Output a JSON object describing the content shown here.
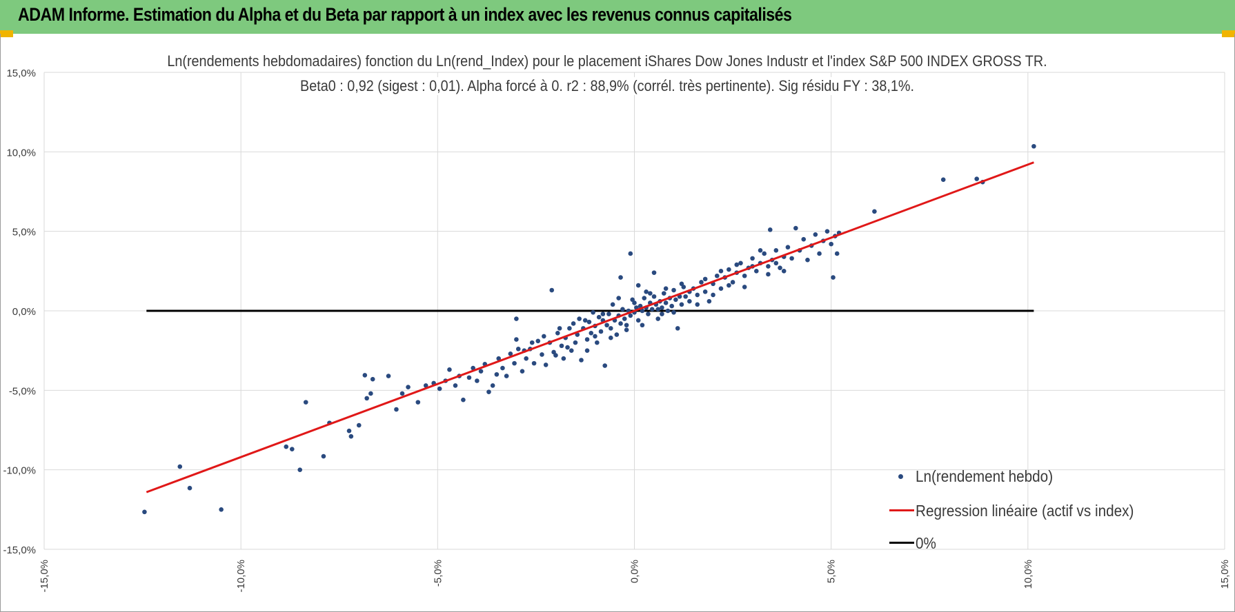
{
  "header": {
    "title": "ADAM Informe. Estimation du Alpha et du Beta par rapport à un index avec les revenus connus capitalisés"
  },
  "colors": {
    "header_bg": "#7ec97e",
    "points": "#2a4a7f",
    "regression": "#e01818",
    "zero_line": "#000000",
    "grid": "#d9d9d9"
  },
  "chart_data": {
    "type": "scatter",
    "title_line1": "Ln(rendements hebdomadaires) fonction du Ln(rend_Index) pour le placement iShares Dow Jones Industr et l'index S&P 500 INDEX GROSS TR.",
    "title_line2": "Beta0 : 0,92  (sigest : 0,01). Alpha forcé à 0. r2 : 88,9% (corrél. très pertinente). Sig résidu FY : 38,1%.",
    "xlim": [
      -0.15,
      0.15
    ],
    "ylim": [
      -0.15,
      0.15
    ],
    "x_ticks": [
      -0.15,
      -0.1,
      -0.05,
      0.0,
      0.05,
      0.1,
      0.15
    ],
    "x_tick_labels": [
      "-15,0%",
      "-10,0%",
      "-5,0%",
      "0,0%",
      "5,0%",
      "10,0%",
      "15,0%"
    ],
    "y_ticks": [
      0.15,
      0.1,
      0.05,
      0.0,
      -0.05,
      -0.1,
      -0.15
    ],
    "y_tick_labels": [
      "15,0%",
      "10,0%",
      "5,0%",
      "0,0%",
      "-5,0%",
      "-10,0%",
      "-15,0%"
    ],
    "grid": true,
    "legend_position": "bottom-right",
    "beta": 0.92,
    "series": [
      {
        "name": "Ln(rendement hebdo)",
        "kind": "scatter",
        "points": [
          [
            -0.1245,
            -0.1265
          ],
          [
            -0.1155,
            -0.098
          ],
          [
            -0.113,
            -0.1115
          ],
          [
            -0.105,
            -0.125
          ],
          [
            -0.0885,
            -0.0855
          ],
          [
            -0.087,
            -0.087
          ],
          [
            -0.085,
            -0.1
          ],
          [
            -0.0835,
            -0.0575
          ],
          [
            -0.079,
            -0.0915
          ],
          [
            -0.0775,
            -0.0705
          ],
          [
            -0.0725,
            -0.0755
          ],
          [
            -0.072,
            -0.079
          ],
          [
            -0.07,
            -0.072
          ],
          [
            -0.0685,
            -0.0405
          ],
          [
            -0.068,
            -0.055
          ],
          [
            -0.067,
            -0.052
          ],
          [
            -0.0665,
            -0.043
          ],
          [
            -0.0625,
            -0.041
          ],
          [
            -0.0605,
            -0.062
          ],
          [
            -0.059,
            -0.052
          ],
          [
            -0.0575,
            -0.048
          ],
          [
            -0.055,
            -0.0575
          ],
          [
            -0.053,
            -0.047
          ],
          [
            -0.051,
            -0.0455
          ],
          [
            -0.0495,
            -0.049
          ],
          [
            -0.048,
            -0.044
          ],
          [
            -0.047,
            -0.037
          ],
          [
            -0.0455,
            -0.047
          ],
          [
            -0.0445,
            -0.041
          ],
          [
            -0.0435,
            -0.056
          ],
          [
            -0.042,
            -0.042
          ],
          [
            -0.041,
            -0.036
          ],
          [
            -0.04,
            -0.044
          ],
          [
            -0.039,
            -0.038
          ],
          [
            -0.038,
            -0.0335
          ],
          [
            -0.037,
            -0.051
          ],
          [
            -0.036,
            -0.047
          ],
          [
            -0.035,
            -0.04
          ],
          [
            -0.0345,
            -0.03
          ],
          [
            -0.0335,
            -0.036
          ],
          [
            -0.0325,
            -0.041
          ],
          [
            -0.0315,
            -0.027
          ],
          [
            -0.0305,
            -0.033
          ],
          [
            -0.03,
            -0.005
          ],
          [
            -0.0295,
            -0.024
          ],
          [
            -0.0285,
            -0.038
          ],
          [
            -0.0275,
            -0.03
          ],
          [
            -0.0265,
            -0.024
          ],
          [
            -0.0255,
            -0.033
          ],
          [
            -0.0245,
            -0.019
          ],
          [
            -0.0235,
            -0.0275
          ],
          [
            -0.0225,
            -0.034
          ],
          [
            -0.0215,
            -0.02
          ],
          [
            -0.021,
            0.013
          ],
          [
            -0.0205,
            -0.026
          ],
          [
            -0.0195,
            -0.014
          ],
          [
            -0.0185,
            -0.022
          ],
          [
            -0.018,
            -0.03
          ],
          [
            -0.0175,
            -0.017
          ],
          [
            -0.0165,
            -0.011
          ],
          [
            -0.016,
            -0.025
          ],
          [
            -0.0155,
            -0.008
          ],
          [
            -0.015,
            -0.02
          ],
          [
            -0.0145,
            -0.015
          ],
          [
            -0.0135,
            -0.031
          ],
          [
            -0.013,
            -0.011
          ],
          [
            -0.0125,
            -0.006
          ],
          [
            -0.012,
            -0.018
          ],
          [
            -0.0115,
            -0.007
          ],
          [
            -0.011,
            -0.014
          ],
          [
            -0.0105,
            -0.001
          ],
          [
            -0.01,
            -0.0095
          ],
          [
            -0.0095,
            -0.02
          ],
          [
            -0.009,
            -0.004
          ],
          [
            -0.0085,
            -0.013
          ],
          [
            -0.008,
            -0.006
          ],
          [
            -0.0075,
            -0.0345
          ],
          [
            -0.007,
            -0.009
          ],
          [
            -0.0065,
            -0.002
          ],
          [
            -0.006,
            -0.011
          ],
          [
            -0.0055,
            0.004
          ],
          [
            -0.005,
            -0.006
          ],
          [
            -0.0045,
            -0.015
          ],
          [
            -0.004,
            -0.003
          ],
          [
            -0.0035,
            -0.008
          ],
          [
            -0.003,
            0.001
          ],
          [
            -0.0025,
            -0.005
          ],
          [
            -0.002,
            -0.012
          ],
          [
            -0.0015,
            0.0
          ],
          [
            -0.001,
            -0.003
          ],
          [
            -0.0005,
            0.007
          ],
          [
            0.0,
            -0.001
          ],
          [
            0.0005,
            0.002
          ],
          [
            0.001,
            -0.006
          ],
          [
            0.0015,
            0.003
          ],
          [
            0.002,
            0.0
          ],
          [
            0.0025,
            0.008
          ],
          [
            0.003,
            0.002
          ],
          [
            0.0035,
            -0.002
          ],
          [
            0.004,
            0.005
          ],
          [
            0.0045,
            0.001
          ],
          [
            0.005,
            0.009
          ],
          [
            0.0055,
            0.004
          ],
          [
            0.006,
            -0.005
          ],
          [
            0.0065,
            0.006
          ],
          [
            0.007,
            0.002
          ],
          [
            0.0075,
            0.011
          ],
          [
            0.008,
            0.005
          ],
          [
            0.0085,
            0.0
          ],
          [
            0.009,
            0.008
          ],
          [
            0.0095,
            0.003
          ],
          [
            0.01,
            0.013
          ],
          [
            0.0105,
            0.007
          ],
          [
            0.011,
            -0.011
          ],
          [
            0.0115,
            0.009
          ],
          [
            0.012,
            0.004
          ],
          [
            0.0125,
            0.015
          ],
          [
            0.013,
            0.009
          ],
          [
            0.014,
            0.006
          ],
          [
            0.015,
            0.014
          ],
          [
            0.016,
            0.01
          ],
          [
            0.017,
            0.018
          ],
          [
            0.018,
            0.012
          ],
          [
            0.019,
            0.006
          ],
          [
            0.02,
            0.017
          ],
          [
            0.021,
            0.022
          ],
          [
            0.022,
            0.014
          ],
          [
            0.023,
            0.021
          ],
          [
            0.024,
            0.026
          ],
          [
            0.025,
            0.018
          ],
          [
            0.026,
            0.024
          ],
          [
            0.027,
            0.03
          ],
          [
            0.028,
            0.022
          ],
          [
            0.029,
            0.027
          ],
          [
            0.03,
            0.033
          ],
          [
            0.031,
            0.025
          ],
          [
            0.032,
            0.03
          ],
          [
            0.033,
            0.036
          ],
          [
            0.034,
            0.028
          ],
          [
            0.0345,
            0.051
          ],
          [
            0.035,
            0.032
          ],
          [
            0.036,
            0.038
          ],
          [
            0.037,
            0.027
          ],
          [
            0.038,
            0.034
          ],
          [
            0.039,
            0.04
          ],
          [
            0.04,
            0.033
          ],
          [
            0.041,
            0.052
          ],
          [
            0.042,
            0.038
          ],
          [
            0.043,
            0.045
          ],
          [
            0.044,
            0.032
          ],
          [
            0.045,
            0.041
          ],
          [
            0.046,
            0.048
          ],
          [
            0.047,
            0.036
          ],
          [
            0.048,
            0.044
          ],
          [
            0.049,
            0.05
          ],
          [
            0.05,
            0.042
          ],
          [
            0.0505,
            0.021
          ],
          [
            0.051,
            0.047
          ],
          [
            0.0515,
            0.036
          ],
          [
            0.052,
            0.049
          ],
          [
            0.061,
            0.0625
          ],
          [
            0.0785,
            0.0825
          ],
          [
            0.087,
            0.083
          ],
          [
            0.0885,
            0.081
          ],
          [
            0.1015,
            0.1035
          ],
          [
            -0.02,
            -0.028
          ],
          [
            -0.019,
            -0.011
          ],
          [
            -0.017,
            -0.023
          ],
          [
            -0.014,
            -0.005
          ],
          [
            -0.012,
            -0.025
          ],
          [
            -0.01,
            -0.016
          ],
          [
            -0.008,
            -0.002
          ],
          [
            -0.006,
            -0.017
          ],
          [
            -0.004,
            0.008
          ],
          [
            -0.002,
            -0.009
          ],
          [
            0.0,
            0.005
          ],
          [
            0.002,
            -0.009
          ],
          [
            0.004,
            0.011
          ],
          [
            0.006,
            0.001
          ],
          [
            0.008,
            0.014
          ],
          [
            0.01,
            -0.001
          ],
          [
            0.012,
            0.017
          ],
          [
            0.014,
            0.012
          ],
          [
            0.016,
            0.004
          ],
          [
            0.018,
            0.02
          ],
          [
            0.02,
            0.01
          ],
          [
            0.022,
            0.025
          ],
          [
            0.024,
            0.016
          ],
          [
            0.026,
            0.029
          ],
          [
            0.028,
            0.015
          ],
          [
            0.03,
            0.028
          ],
          [
            0.032,
            0.038
          ],
          [
            0.034,
            0.023
          ],
          [
            0.036,
            0.03
          ],
          [
            0.038,
            0.025
          ],
          [
            -0.001,
            0.036
          ],
          [
            0.001,
            0.016
          ],
          [
            0.003,
            0.012
          ],
          [
            0.005,
            0.024
          ],
          [
            0.007,
            -0.002
          ],
          [
            -0.0035,
            0.021
          ],
          [
            -0.03,
            -0.018
          ],
          [
            -0.026,
            -0.02
          ],
          [
            -0.023,
            -0.016
          ],
          [
            -0.028,
            -0.025
          ]
        ]
      },
      {
        "name": "Regression linéaire (actif vs index)",
        "kind": "line",
        "x_range": [
          -0.124,
          0.1015
        ]
      },
      {
        "name": "0%",
        "kind": "line",
        "x_range": [
          -0.124,
          0.1015
        ],
        "y_value": 0.0
      }
    ]
  }
}
